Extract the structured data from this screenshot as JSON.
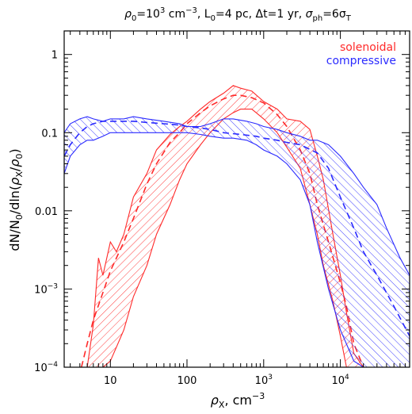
{
  "chart_data": {
    "type": "line",
    "title": "ρ0=10³ cm⁻³, L0=4 pc, Δt=1 yr, σph=6σT",
    "title_parts": {
      "rho0": "ρ",
      "sub0": "0",
      "eq_rho": "=10",
      "exp3": "3",
      "cm": " cm",
      "cm_exp": "−3",
      "L": ", L",
      "L_sub": "0",
      "L_val": "=4 pc,  Δt=1 yr,  ",
      "sigma": "σ",
      "sigma_sub": "ph",
      "eq6": "=6σ",
      "T_sub": "T"
    },
    "xlabel_parts": {
      "rho": "ρ",
      "sub": "X",
      "unit": ", cm",
      "unit_exp": "−3"
    },
    "ylabel": "dN/N0/dln(ρX/ρ0)",
    "ylabel_parts": {
      "pre": "dN/N",
      "sub0": "0",
      "mid": "/dln(",
      "rho": "ρ",
      "subX": "X",
      "slash": "/",
      "rho2": "ρ",
      "sub02": "0",
      "end": ")"
    },
    "x_scale": "log",
    "y_scale": "log",
    "xlim": [
      2.5,
      80000
    ],
    "ylim": [
      0.0001,
      2
    ],
    "x_ticks": [
      {
        "value": 10,
        "label": "10"
      },
      {
        "value": 100,
        "label": "100"
      },
      {
        "value": 1000,
        "base": "10",
        "exp": "3"
      },
      {
        "value": 10000,
        "base": "10",
        "exp": "4"
      }
    ],
    "y_ticks": [
      {
        "value": 1,
        "label": "1"
      },
      {
        "value": 0.1,
        "label": "0.1"
      },
      {
        "value": 0.01,
        "label": "0.01"
      },
      {
        "value": 0.001,
        "base": "10",
        "exp": "−3"
      },
      {
        "value": 0.0001,
        "base": "10",
        "exp": "−4"
      }
    ],
    "legend": {
      "placement": "top-right"
    },
    "series": [
      {
        "name": "solenoidal",
        "color": "#ff2a2a",
        "hatch": "down-right",
        "band_x": [
          5,
          6,
          7,
          8,
          10,
          12,
          15,
          20,
          30,
          40,
          60,
          80,
          100,
          150,
          200,
          300,
          400,
          500,
          700,
          1000,
          1500,
          2000,
          3000,
          4000,
          5000,
          6000,
          8000,
          10000,
          12000,
          15000,
          20000
        ],
        "band_upper": [
          0.0001,
          0.00035,
          0.0025,
          0.0015,
          0.004,
          0.003,
          0.005,
          0.015,
          0.03,
          0.06,
          0.095,
          0.12,
          0.14,
          0.2,
          0.25,
          0.32,
          0.4,
          0.37,
          0.34,
          0.25,
          0.2,
          0.15,
          0.14,
          0.11,
          0.05,
          0.025,
          0.005,
          0.0015,
          0.0005,
          0.00015,
          0.0001
        ],
        "band_lower": [
          0.0001,
          0.0001,
          0.0001,
          0.0001,
          0.00012,
          0.00018,
          0.0003,
          0.0008,
          0.002,
          0.005,
          0.012,
          0.025,
          0.04,
          0.07,
          0.1,
          0.15,
          0.18,
          0.2,
          0.2,
          0.15,
          0.1,
          0.065,
          0.035,
          0.012,
          0.005,
          0.002,
          0.0007,
          0.00025,
          0.0001,
          0.0001,
          0.0001
        ],
        "mean_x": [
          4.2,
          5,
          6,
          8,
          10,
          15,
          20,
          30,
          40,
          60,
          80,
          100,
          150,
          200,
          300,
          400,
          500,
          700,
          1000,
          1500,
          2000,
          3000,
          4000,
          5000,
          7000,
          10000,
          12000,
          15000,
          20000
        ],
        "mean_y": [
          0.0001,
          0.0002,
          0.0004,
          0.0009,
          0.0017,
          0.004,
          0.008,
          0.022,
          0.04,
          0.075,
          0.1,
          0.13,
          0.18,
          0.22,
          0.27,
          0.3,
          0.3,
          0.28,
          0.24,
          0.17,
          0.12,
          0.06,
          0.03,
          0.012,
          0.004,
          0.0012,
          0.0006,
          0.0002,
          0.0001
        ]
      },
      {
        "name": "compressive",
        "color": "#2a2aff",
        "hatch": "up-right",
        "band_x": [
          2.5,
          3,
          4,
          5,
          6,
          8,
          10,
          15,
          20,
          30,
          50,
          80,
          100,
          150,
          200,
          300,
          400,
          600,
          800,
          1000,
          1500,
          2000,
          3000,
          4000,
          5000,
          7000,
          10000,
          15000,
          20000,
          30000,
          40000,
          60000,
          80000
        ],
        "band_upper": [
          0.1,
          0.13,
          0.15,
          0.16,
          0.15,
          0.14,
          0.15,
          0.15,
          0.16,
          0.15,
          0.14,
          0.13,
          0.12,
          0.12,
          0.13,
          0.15,
          0.15,
          0.14,
          0.13,
          0.12,
          0.11,
          0.1,
          0.09,
          0.08,
          0.08,
          0.07,
          0.05,
          0.03,
          0.02,
          0.012,
          0.006,
          0.0025,
          0.0015
        ],
        "band_lower": [
          0.03,
          0.05,
          0.07,
          0.08,
          0.08,
          0.09,
          0.1,
          0.1,
          0.1,
          0.1,
          0.1,
          0.1,
          0.1,
          0.095,
          0.09,
          0.085,
          0.085,
          0.08,
          0.07,
          0.06,
          0.05,
          0.04,
          0.025,
          0.012,
          0.004,
          0.001,
          0.0003,
          0.00012,
          0.0001,
          0.0001,
          0.0001,
          0.0001,
          0.0001
        ],
        "mean_x": [
          2.5,
          3,
          4,
          5,
          6,
          8,
          10,
          15,
          20,
          30,
          50,
          80,
          100,
          150,
          200,
          300,
          500,
          800,
          1000,
          1500,
          2000,
          3000,
          5000,
          7000,
          10000,
          15000,
          20000,
          30000,
          50000,
          80000
        ],
        "mean_y": [
          0.05,
          0.07,
          0.1,
          0.12,
          0.13,
          0.14,
          0.14,
          0.14,
          0.14,
          0.135,
          0.13,
          0.125,
          0.12,
          0.115,
          0.11,
          0.1,
          0.095,
          0.09,
          0.085,
          0.08,
          0.075,
          0.07,
          0.055,
          0.035,
          0.015,
          0.006,
          0.003,
          0.0015,
          0.0006,
          0.00025
        ]
      }
    ]
  }
}
